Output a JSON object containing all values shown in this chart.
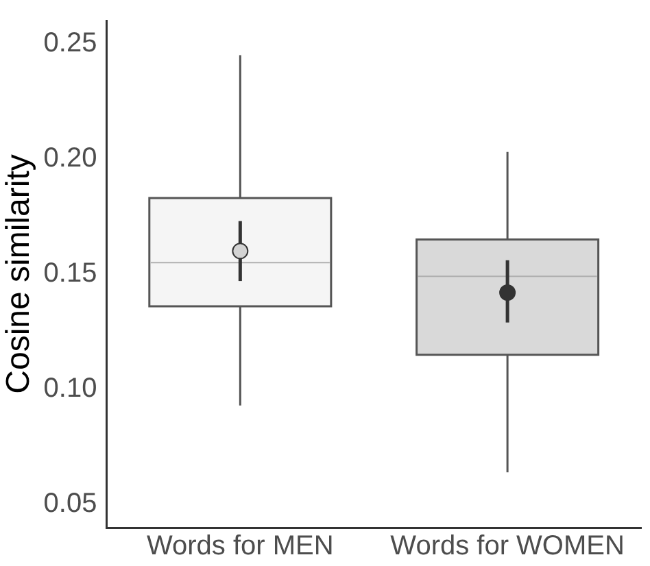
{
  "chart_data": {
    "type": "box",
    "ylabel": "Cosine similarity",
    "categories": [
      "Words for MEN",
      "Words for WOMEN"
    ],
    "ylim": [
      0.04,
      0.26
    ],
    "yticks": [
      {
        "value": 0.05,
        "label": "0.05"
      },
      {
        "value": 0.1,
        "label": "0.10"
      },
      {
        "value": 0.15,
        "label": "0.15"
      },
      {
        "value": 0.2,
        "label": "0.20"
      },
      {
        "value": 0.25,
        "label": "0.25"
      }
    ],
    "grid": false,
    "series": [
      {
        "colors": [
          "#f5f5f5",
          "#d9d9d9"
        ],
        "boxes": [
          {
            "low": 0.093,
            "q1": 0.136,
            "median": 0.155,
            "q3": 0.183,
            "high": 0.245
          },
          {
            "low": 0.064,
            "q1": 0.115,
            "median": 0.149,
            "q3": 0.165,
            "high": 0.203
          }
        ]
      },
      {
        "type": "scatter",
        "x": [
          "Words for MEN",
          "Words for WOMEN"
        ],
        "values": [
          0.16,
          0.142
        ],
        "errors": [
          [
            0.147,
            0.173
          ],
          [
            0.129,
            0.156
          ]
        ],
        "colors": [
          "#d3d3d3",
          "#333333"
        ],
        "marker": "circle"
      }
    ]
  }
}
